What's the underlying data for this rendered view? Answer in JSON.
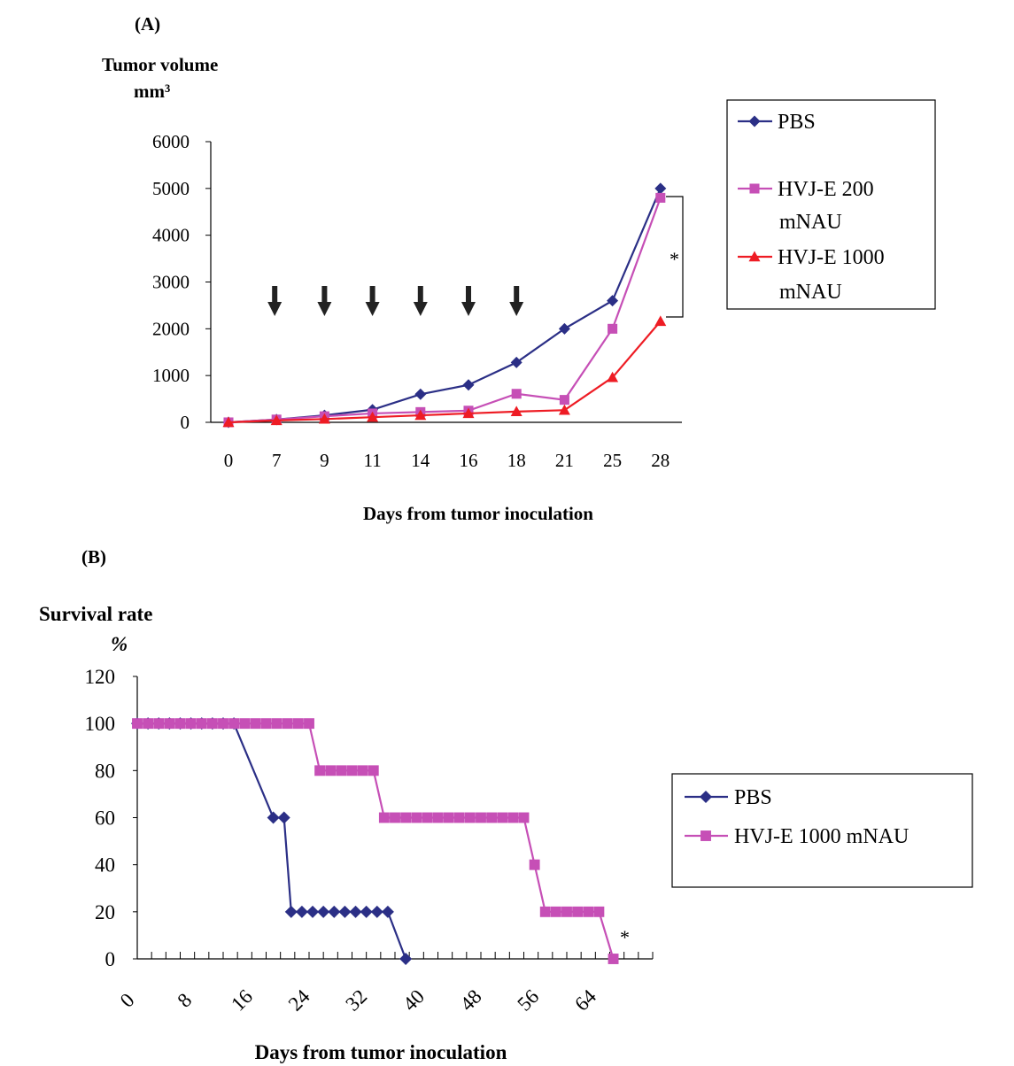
{
  "chart_data": [
    {
      "panel": "(A)",
      "type": "line",
      "ylabel_line1": "Tumor volume",
      "ylabel_line2": "mm³",
      "xlabel": "Days from tumor inoculation",
      "categories": [
        "0",
        "7",
        "9",
        "11",
        "14",
        "16",
        "18",
        "21",
        "25",
        "28"
      ],
      "ylim": [
        0,
        6000
      ],
      "yticks": [
        "0",
        "1000",
        "2000",
        "3000",
        "4000",
        "5000",
        "6000"
      ],
      "grid": false,
      "legend_position": "right",
      "arrows_at": [
        "7",
        "9",
        "11",
        "14",
        "16",
        "18"
      ],
      "significance_mark": "*",
      "series": [
        {
          "name": "PBS",
          "legend_line2": "",
          "color": "#2b2f86",
          "marker": "diamond",
          "values": [
            0,
            60,
            150,
            270,
            600,
            800,
            1280,
            2000,
            2600,
            5000
          ]
        },
        {
          "name": "HVJ-E 200",
          "legend_line2": "mNAU",
          "color": "#c64fb6",
          "marker": "square",
          "values": [
            0,
            60,
            130,
            190,
            220,
            250,
            610,
            480,
            2000,
            4800
          ]
        },
        {
          "name": "HVJ-E 1000",
          "legend_line2": "mNAU",
          "color": "#ee1c24",
          "marker": "triangle",
          "values": [
            0,
            40,
            70,
            110,
            150,
            190,
            230,
            260,
            960,
            2160
          ]
        }
      ]
    },
    {
      "panel": "(B)",
      "type": "line",
      "ylabel_line1": "Survival rate",
      "ylabel_line2": "%",
      "xlabel": "Days from tumor inoculation",
      "xlim": [
        0,
        72
      ],
      "xticks": [
        "0",
        "8",
        "16",
        "24",
        "32",
        "40",
        "48",
        "56",
        "64"
      ],
      "ylim": [
        0,
        120
      ],
      "yticks": [
        "0",
        "20",
        "40",
        "60",
        "80",
        "100",
        "120"
      ],
      "grid": false,
      "legend_position": "right",
      "significance_mark": "*",
      "series": [
        {
          "name": "PBS",
          "color": "#2b2f86",
          "marker": "diamond",
          "x": [
            0,
            1.5,
            3,
            4.5,
            6,
            7.5,
            9,
            10.5,
            12,
            13.5,
            19,
            20.5,
            21.5,
            23,
            24.5,
            26,
            27.5,
            29,
            30.5,
            32,
            33.5,
            35,
            37.5
          ],
          "y": [
            100,
            100,
            100,
            100,
            100,
            100,
            100,
            100,
            100,
            100,
            60,
            60,
            20,
            20,
            20,
            20,
            20,
            20,
            20,
            20,
            20,
            20,
            0
          ]
        },
        {
          "name": "HVJ-E 1000 mNAU",
          "color": "#c64fb6",
          "marker": "square",
          "x": [
            0,
            1.5,
            3,
            4.5,
            6,
            7.5,
            9,
            10.5,
            12,
            13.5,
            15,
            16.5,
            18,
            19.5,
            21,
            22.5,
            24,
            25.5,
            27,
            28.5,
            30,
            31.5,
            33,
            34.5,
            36,
            37.5,
            39,
            40.5,
            42,
            43.5,
            45,
            46.5,
            48,
            49.5,
            51,
            52.5,
            54,
            55.5,
            57,
            58.5,
            60,
            61.5,
            63,
            64.5,
            66.5
          ],
          "y": [
            100,
            100,
            100,
            100,
            100,
            100,
            100,
            100,
            100,
            100,
            100,
            100,
            100,
            100,
            100,
            100,
            100,
            80,
            80,
            80,
            80,
            80,
            80,
            60,
            60,
            60,
            60,
            60,
            60,
            60,
            60,
            60,
            60,
            60,
            60,
            60,
            60,
            40,
            20,
            20,
            20,
            20,
            20,
            20,
            0
          ]
        }
      ]
    }
  ]
}
